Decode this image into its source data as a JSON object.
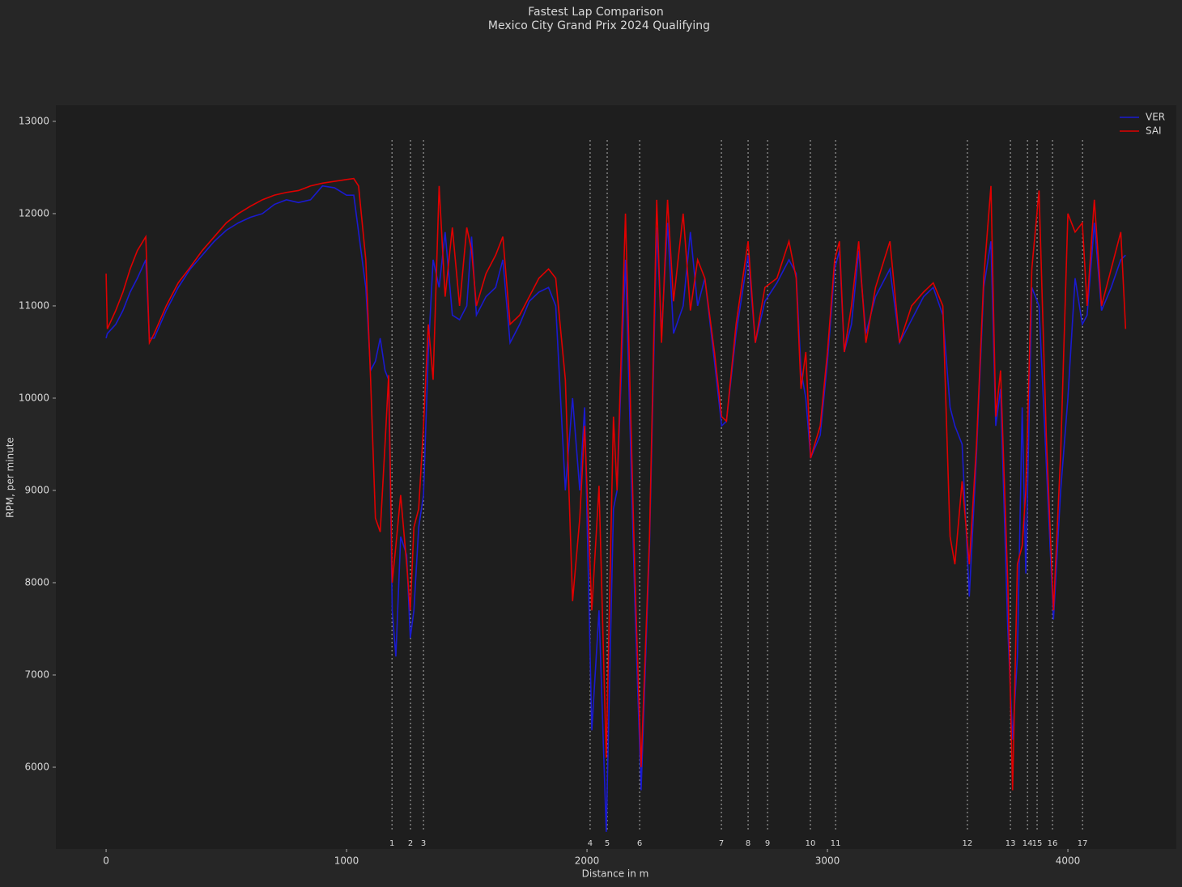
{
  "chart_data": {
    "type": "line",
    "title": "Fastest Lap Comparison",
    "subtitle": "Mexico City Grand Prix 2024 Qualifying",
    "x_label": "Distance in m",
    "y_label": "RPM, per minute",
    "x": [
      0,
      5,
      40,
      70,
      100,
      130,
      165,
      180,
      200,
      250,
      300,
      350,
      400,
      450,
      500,
      550,
      600,
      650,
      700,
      750,
      800,
      850,
      900,
      950,
      1000,
      1030,
      1050,
      1080,
      1100,
      1120,
      1140,
      1160,
      1175,
      1190,
      1205,
      1225,
      1250,
      1265,
      1280,
      1300,
      1320,
      1340,
      1360,
      1385,
      1410,
      1440,
      1470,
      1500,
      1520,
      1540,
      1580,
      1620,
      1650,
      1680,
      1720,
      1760,
      1800,
      1840,
      1870,
      1910,
      1940,
      1970,
      1990,
      2020,
      2050,
      2080,
      2110,
      2125,
      2160,
      2200,
      2225,
      2260,
      2290,
      2310,
      2335,
      2360,
      2400,
      2430,
      2460,
      2490,
      2530,
      2560,
      2580,
      2620,
      2670,
      2700,
      2740,
      2790,
      2840,
      2870,
      2890,
      2910,
      2930,
      2970,
      3000,
      3030,
      3050,
      3070,
      3100,
      3130,
      3160,
      3200,
      3260,
      3300,
      3350,
      3400,
      3440,
      3480,
      3510,
      3530,
      3560,
      3590,
      3620,
      3650,
      3680,
      3700,
      3720,
      3750,
      3770,
      3790,
      3810,
      3825,
      3850,
      3880,
      3910,
      3940,
      3970,
      4000,
      4030,
      4060,
      4080,
      4110,
      4140,
      4180,
      4220,
      4240
    ],
    "series": [
      {
        "name": "VER",
        "color": "#1a1ad0",
        "values": [
          10650,
          10700,
          10800,
          10950,
          11150,
          11300,
          11500,
          10650,
          10650,
          10950,
          11200,
          11400,
          11550,
          11700,
          11820,
          11900,
          11960,
          12000,
          12100,
          12150,
          12120,
          12150,
          12300,
          12280,
          12200,
          12200,
          11800,
          11200,
          10300,
          10400,
          10650,
          10300,
          10200,
          7700,
          7200,
          8500,
          8300,
          7400,
          7700,
          8600,
          8950,
          10500,
          11500,
          11200,
          11800,
          10900,
          10850,
          11000,
          11750,
          10900,
          11100,
          11200,
          11500,
          10600,
          10800,
          11050,
          11150,
          11200,
          11000,
          9000,
          10000,
          9000,
          9900,
          6400,
          7700,
          5300,
          8800,
          9000,
          11500,
          7700,
          5750,
          8400,
          11850,
          10700,
          11900,
          10700,
          11000,
          11800,
          11000,
          11300,
          10400,
          9700,
          9750,
          10700,
          11550,
          10600,
          11050,
          11250,
          11500,
          11350,
          10300,
          10000,
          9350,
          9600,
          10400,
          11400,
          11600,
          10500,
          10800,
          11600,
          10700,
          11100,
          11400,
          10600,
          10850,
          11100,
          11200,
          10900,
          9900,
          9700,
          9500,
          7850,
          9400,
          11200,
          11700,
          9700,
          10100,
          7500,
          6300,
          7200,
          9900,
          8100,
          11200,
          11000,
          9300,
          7600,
          9000,
          10000,
          11300,
          10800,
          10900,
          11900,
          10950,
          11200,
          11500,
          11550
        ]
      },
      {
        "name": "SAI",
        "color": "#e00000",
        "values": [
          11350,
          10750,
          10950,
          11150,
          11400,
          11600,
          11750,
          10600,
          10700,
          11000,
          11250,
          11420,
          11600,
          11750,
          11900,
          12000,
          12080,
          12150,
          12200,
          12230,
          12250,
          12300,
          12330,
          12350,
          12370,
          12380,
          12300,
          11500,
          10200,
          8700,
          8550,
          9500,
          10250,
          8000,
          8400,
          8950,
          8200,
          7700,
          8600,
          8800,
          9700,
          10800,
          10200,
          12300,
          11100,
          11850,
          11000,
          11850,
          11600,
          11000,
          11350,
          11550,
          11750,
          10800,
          10900,
          11100,
          11300,
          11400,
          11300,
          10200,
          7800,
          8700,
          9700,
          7700,
          9050,
          6100,
          9800,
          9000,
          12000,
          8000,
          6000,
          8500,
          12150,
          10600,
          12150,
          11050,
          12000,
          10950,
          11500,
          11300,
          10500,
          9800,
          9750,
          10800,
          11700,
          10600,
          11200,
          11300,
          11700,
          11300,
          10100,
          10500,
          9350,
          9700,
          10500,
          11500,
          11700,
          10500,
          11000,
          11700,
          10600,
          11200,
          11700,
          10600,
          11000,
          11150,
          11250,
          11000,
          8500,
          8200,
          9100,
          8200,
          9500,
          11300,
          12300,
          9800,
          10300,
          8000,
          5750,
          8200,
          8400,
          9000,
          11400,
          12250,
          9600,
          7700,
          9400,
          12000,
          11800,
          11900,
          11000,
          12150,
          11000,
          11400,
          11800,
          10750
        ]
      }
    ],
    "xlim": [
      -209,
      4451
    ],
    "ylim": [
      5114,
      13175
    ],
    "xticks": [
      0,
      1000,
      2000,
      3000,
      4000
    ],
    "yticks": [
      6000,
      7000,
      8000,
      9000,
      10000,
      11000,
      12000,
      13000
    ],
    "grid": false,
    "legend_loc": "upper right",
    "corners": {
      "numbers": [
        1,
        2,
        3,
        4,
        5,
        6,
        7,
        8,
        9,
        10,
        11,
        12,
        13,
        14,
        15,
        16,
        17
      ],
      "distances": [
        1189,
        1266,
        1320,
        2013,
        2084,
        2219,
        2559,
        2670,
        2751,
        2929,
        3034,
        3582,
        3761,
        3832,
        3872,
        3936,
        4061
      ]
    }
  }
}
